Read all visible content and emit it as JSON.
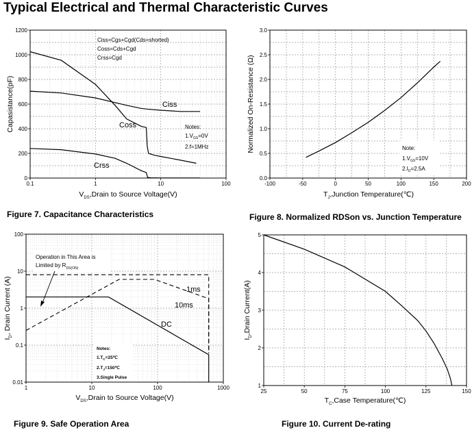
{
  "page": {
    "title": "Typical Electrical and Thermal Characteristic Curves"
  },
  "captions": {
    "fig7": "Figure 7. Capacitance Characteristics",
    "fig8": "Figure 8. Normalized RDSon vs. Junction Temperature",
    "fig9": "Figure 9. Safe Operation Area",
    "fig10": "Figure 10. Current De-rating"
  },
  "chart_data": [
    {
      "id": "fig7",
      "type": "line",
      "xscale": "log",
      "xlim": [
        0.1,
        100
      ],
      "ylim": [
        0,
        1200
      ],
      "x_ticks": [
        "0.1",
        "1",
        "10",
        "100"
      ],
      "y_ticks": [
        "0",
        "200",
        "400",
        "600",
        "800",
        "1000",
        "1200"
      ],
      "ylabel": "Capasistance(pF)",
      "xlabel": {
        "prefix": "V",
        "sub": "DS",
        "rest": ",Drain to Source Voltage(V)"
      },
      "legend_lines": [
        "Ciss=Cgs+Cgd(Cds=shorted)",
        "Coss=Cds+Cgd",
        "Crss=Cgd"
      ],
      "notes": {
        "title": "Notes:",
        "line1": {
          "prefix": "1.V",
          "sub": "GS",
          "rest": "=0V"
        },
        "line2": "2.f=1MHz"
      },
      "series": [
        {
          "name": "Ciss",
          "x": [
            0.1,
            0.3,
            1,
            3,
            5,
            6,
            10,
            20,
            40
          ],
          "y": [
            705,
            690,
            650,
            590,
            565,
            560,
            550,
            540,
            540
          ]
        },
        {
          "name": "Coss",
          "x": [
            0.1,
            0.3,
            1,
            2,
            3,
            5,
            6,
            6.2,
            6.5,
            8,
            10,
            20,
            35
          ],
          "y": [
            1025,
            955,
            760,
            590,
            480,
            420,
            410,
            260,
            200,
            185,
            175,
            145,
            120
          ]
        },
        {
          "name": "Crss",
          "x": [
            0.1,
            0.3,
            1,
            2,
            3,
            5,
            6,
            6.3,
            7,
            10,
            20,
            40
          ],
          "y": [
            240,
            230,
            195,
            160,
            120,
            60,
            45,
            5,
            2,
            1,
            1,
            1
          ]
        }
      ]
    },
    {
      "id": "fig8",
      "type": "line",
      "xlim": [
        -100,
        200
      ],
      "ylim": [
        0.0,
        3.0
      ],
      "x_ticks": [
        "-100",
        "-50",
        "0",
        "50",
        "100",
        "150",
        "200"
      ],
      "y_ticks": [
        "0.0",
        "0.5",
        "1.0",
        "1.5",
        "2.0",
        "2.5",
        "3.0"
      ],
      "ylabel": "Normalized On-Resistance (Ω)",
      "xlabel": {
        "prefix": "T",
        "sub": "J",
        "rest": ",Junction Temperature(℃)"
      },
      "notes": {
        "title": "Note:",
        "line1": {
          "prefix": "1.V",
          "sub": "GS",
          "rest": "=10V"
        },
        "line2": {
          "prefix": "2.I",
          "sub": "D",
          "rest": "=2.5A"
        }
      },
      "series": [
        {
          "name": "RDSon",
          "x": [
            -45,
            -25,
            0,
            25,
            50,
            75,
            100,
            125,
            150,
            160
          ],
          "y": [
            0.42,
            0.55,
            0.72,
            0.92,
            1.13,
            1.37,
            1.63,
            1.93,
            2.25,
            2.37
          ]
        }
      ]
    },
    {
      "id": "fig9",
      "type": "line",
      "xscale": "log",
      "yscale": "log",
      "xlim": [
        1,
        1000
      ],
      "ylim": [
        0.01,
        100
      ],
      "x_ticks": [
        "1",
        "10",
        "100",
        "1000"
      ],
      "y_ticks": [
        "0.01",
        "0.1",
        "1",
        "10",
        "100"
      ],
      "ylabel": {
        "prefix": "I",
        "sub": "D",
        "rest": ", Drain Current (A)"
      },
      "xlabel": {
        "prefix": "V",
        "sub": "DS",
        "rest": ",Drain to Source Voltage(V)"
      },
      "annotation": {
        "line1": "Operation in This Area is",
        "line2": "Limited by R",
        "line2_sub": "DS(ON)"
      },
      "labels": [
        "1ms",
        "10ms",
        "DC"
      ],
      "notes": {
        "title": "Notes:",
        "line1": {
          "prefix": "1.T",
          "sub": "C",
          "rest": "=25℃"
        },
        "line2": {
          "prefix": "2.T",
          "sub": "J",
          "rest": "=150℃"
        },
        "line3": "3.Single Pulse"
      },
      "series": [
        {
          "name": "1ms",
          "style": "dash",
          "x": [
            1,
            600,
            600
          ],
          "y": [
            8,
            8,
            0.06
          ]
        },
        {
          "name": "10ms",
          "style": "dash",
          "x": [
            1,
            26,
            90,
            600,
            600
          ],
          "y": [
            0.25,
            6,
            6,
            1.8,
            0.06
          ]
        },
        {
          "name": "DC",
          "style": "solid",
          "x": [
            1,
            18,
            600,
            600
          ],
          "y": [
            2,
            2,
            0.055,
            0.01
          ]
        }
      ]
    },
    {
      "id": "fig10",
      "type": "line",
      "xlim": [
        25,
        150
      ],
      "ylim": [
        1,
        5
      ],
      "x_ticks": [
        "25",
        "50",
        "75",
        "100",
        "125",
        "150"
      ],
      "y_ticks": [
        "1",
        "2",
        "3",
        "4",
        "5"
      ],
      "ylabel": {
        "prefix": "I",
        "sub": "D",
        "rest": ",Drain Current(A)"
      },
      "xlabel": {
        "prefix": "T",
        "sub": "C",
        "rest": ",Case Temperature(℃)"
      },
      "series": [
        {
          "name": "ID",
          "x": [
            25,
            50,
            75,
            100,
            110,
            120,
            125,
            130,
            135,
            138,
            140,
            141
          ],
          "y": [
            5,
            4.62,
            4.15,
            3.5,
            3.12,
            2.72,
            2.45,
            2.12,
            1.72,
            1.45,
            1.2,
            1.0
          ]
        }
      ]
    }
  ]
}
